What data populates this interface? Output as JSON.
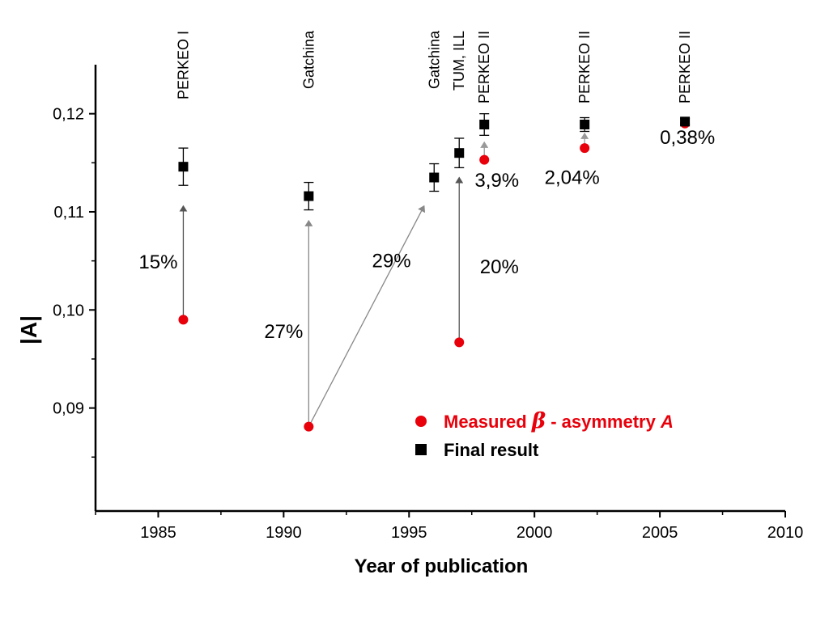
{
  "chart_data": {
    "type": "scatter",
    "xlabel": "Year of publication",
    "ylabel": "|A|",
    "xlim": [
      1982.5,
      2010
    ],
    "ylim": [
      0.0795,
      0.125
    ],
    "xticks": [
      1985,
      1990,
      1995,
      2000,
      2005,
      2010
    ],
    "xtick_labels": [
      "1985",
      "1990",
      "1995",
      "2000",
      "2005",
      "2010"
    ],
    "yticks": [
      0.09,
      0.1,
      0.11,
      0.12
    ],
    "ytick_labels": [
      "0,09",
      "0,10",
      "0,11",
      "0,12"
    ],
    "grid": false,
    "legend": {
      "position": "bottom-right",
      "entries": [
        {
          "marker": "circle",
          "color": "#e8000b",
          "label_prefix": "Measured ",
          "label_symbol": "β",
          "label_middle": " - asymmetry ",
          "label_var": "A"
        },
        {
          "marker": "square",
          "color": "#000000",
          "label": "Final result"
        }
      ]
    },
    "series": [
      {
        "name": "Measured β - asymmetry A",
        "marker": "circle",
        "color": "#e8000b",
        "points": [
          {
            "x": 1986,
            "y": 0.099
          },
          {
            "x": 1991,
            "y": 0.0881
          },
          {
            "x": 1997,
            "y": 0.0967
          },
          {
            "x": 1998,
            "y": 0.1153
          },
          {
            "x": 2002,
            "y": 0.1165
          },
          {
            "x": 2006,
            "y": 0.119
          }
        ]
      },
      {
        "name": "Final result",
        "marker": "square",
        "color": "#000000",
        "points": [
          {
            "x": 1986,
            "y": 0.1146,
            "err": 0.0019
          },
          {
            "x": 1991,
            "y": 0.1116,
            "err": 0.0014
          },
          {
            "x": 1996,
            "y": 0.1135,
            "err": 0.0014
          },
          {
            "x": 1997,
            "y": 0.116,
            "err": 0.0015
          },
          {
            "x": 1998,
            "y": 0.1189,
            "err": 0.0011
          },
          {
            "x": 2002,
            "y": 0.1189,
            "err": 0.0007
          },
          {
            "x": 2006,
            "y": 0.1192,
            "err": 0.0003
          }
        ]
      }
    ],
    "arrows": [
      {
        "from": [
          1986,
          0.099
        ],
        "to": [
          1986,
          0.1106
        ],
        "color": "#555555"
      },
      {
        "from": [
          1991,
          0.0881
        ],
        "to": [
          1991,
          0.1091
        ],
        "color": "#888888"
      },
      {
        "from": [
          1991,
          0.0881
        ],
        "to": [
          1995.6,
          0.1106
        ],
        "color": "#888888"
      },
      {
        "from": [
          1997,
          0.0967
        ],
        "to": [
          1997,
          0.1135
        ],
        "color": "#555555"
      },
      {
        "from": [
          1998,
          0.1153
        ],
        "to": [
          1998,
          0.1171
        ],
        "color": "#999999"
      },
      {
        "from": [
          2002,
          0.1165
        ],
        "to": [
          2002,
          0.118
        ],
        "color": "#999999"
      }
    ],
    "experiment_labels": [
      {
        "text": "PERKEO I",
        "x": 1986
      },
      {
        "text": "Gatchina",
        "x": 1991
      },
      {
        "text": "Gatchina",
        "x": 1996
      },
      {
        "text": "TUM, ILL",
        "x": 1997
      },
      {
        "text": "PERKEO II",
        "x": 1998
      },
      {
        "text": "PERKEO II",
        "x": 2002
      },
      {
        "text": "PERKEO II",
        "x": 2006
      }
    ],
    "annotations": [
      {
        "text": "15%",
        "x": 1985.0,
        "y": 0.1049
      },
      {
        "text": "27%",
        "x": 1990.0,
        "y": 0.0978
      },
      {
        "text": "29%",
        "x": 1994.3,
        "y": 0.105
      },
      {
        "text": "20%",
        "x": 1998.6,
        "y": 0.1044
      },
      {
        "text": "3,9%",
        "x": 1998.5,
        "y": 0.1132
      },
      {
        "text": "2,04%",
        "x": 2001.5,
        "y": 0.1135
      },
      {
        "text": "0,38%",
        "x": 2006.1,
        "y": 0.1176
      }
    ]
  }
}
